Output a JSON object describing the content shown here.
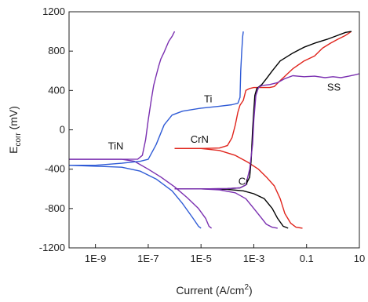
{
  "chart_data": {
    "type": "line",
    "xlabel": "Current (A/cm",
    "xlabel_sup": "2",
    "xlabel_end": ")",
    "ylabel": "E",
    "ylabel_sub": "corr",
    "ylabel_end": " (mV)",
    "xscale": "log",
    "xlim": [
      1e-10,
      10
    ],
    "ylim": [
      -1200,
      1200
    ],
    "x_ticks": [
      {
        "value": 1e-09,
        "label": "1E-9"
      },
      {
        "value": 1e-07,
        "label": "1E-7"
      },
      {
        "value": 1e-05,
        "label": "1E-5"
      },
      {
        "value": 0.001,
        "label": "1E-3"
      },
      {
        "value": 0.1,
        "label": "0.1"
      },
      {
        "value": 10,
        "label": "10"
      }
    ],
    "y_ticks": [
      {
        "value": 1200,
        "label": "1200"
      },
      {
        "value": 800,
        "label": "800"
      },
      {
        "value": 400,
        "label": "400"
      },
      {
        "value": 0,
        "label": "0"
      },
      {
        "value": -400,
        "label": "-400"
      },
      {
        "value": -800,
        "label": "-800"
      },
      {
        "value": -1200,
        "label": "-1200"
      }
    ],
    "grid": false,
    "series": [
      {
        "name": "TiN",
        "color": "#7a2fb0",
        "label_pos": {
          "x": 3e-09,
          "y": -200
        },
        "points": [
          [
            1e-10,
            -300
          ],
          [
            1e-09,
            -300
          ],
          [
            1e-08,
            -300
          ],
          [
            4e-08,
            -298
          ],
          [
            6e-08,
            -260
          ],
          [
            8e-08,
            -100
          ],
          [
            1e-07,
            100
          ],
          [
            1.3e-07,
            300
          ],
          [
            1.6e-07,
            450
          ],
          [
            2e-07,
            550
          ],
          [
            2.5e-07,
            650
          ],
          [
            3e-07,
            720
          ],
          [
            4e-07,
            790
          ],
          [
            5e-07,
            850
          ],
          [
            6e-07,
            900
          ],
          [
            8e-07,
            950
          ],
          [
            1e-06,
            1000
          ]
        ]
      },
      {
        "name": "",
        "color": "#7a2fb0",
        "points": [
          [
            1e-10,
            -300
          ],
          [
            1e-09,
            -300
          ],
          [
            1e-08,
            -300
          ],
          [
            3e-08,
            -320
          ],
          [
            1e-07,
            -400
          ],
          [
            3e-07,
            -480
          ],
          [
            1e-06,
            -580
          ],
          [
            3e-06,
            -690
          ],
          [
            8e-06,
            -800
          ],
          [
            1.5e-05,
            -900
          ],
          [
            2e-05,
            -980
          ],
          [
            2.5e-05,
            -1000
          ]
        ]
      },
      {
        "name": "Ti",
        "color": "#2f5bd6",
        "label_pos": {
          "x": 1.3e-05,
          "y": 280
        },
        "points": [
          [
            1e-10,
            -360
          ],
          [
            1e-09,
            -360
          ],
          [
            1e-08,
            -340
          ],
          [
            5e-08,
            -320
          ],
          [
            1e-07,
            -300
          ],
          [
            2e-07,
            -150
          ],
          [
            4e-07,
            50
          ],
          [
            8e-07,
            150
          ],
          [
            2e-06,
            190
          ],
          [
            1e-05,
            220
          ],
          [
            5e-05,
            240
          ],
          [
            0.00015,
            255
          ],
          [
            0.00025,
            270
          ],
          [
            0.0003,
            330
          ],
          [
            0.00032,
            600
          ],
          [
            0.00035,
            800
          ],
          [
            0.00038,
            950
          ],
          [
            0.0004,
            1000
          ]
        ]
      },
      {
        "name": "",
        "color": "#2f5bd6",
        "points": [
          [
            1e-10,
            -360
          ],
          [
            1e-09,
            -370
          ],
          [
            1e-08,
            -380
          ],
          [
            5e-08,
            -420
          ],
          [
            2e-07,
            -500
          ],
          [
            8e-07,
            -620
          ],
          [
            2e-06,
            -750
          ],
          [
            5e-06,
            -900
          ],
          [
            8e-06,
            -980
          ],
          [
            1e-05,
            -1000
          ]
        ]
      },
      {
        "name": "CrN",
        "color": "#e0241c",
        "label_pos": {
          "x": 4e-06,
          "y": -130
        },
        "points": [
          [
            1e-06,
            -190
          ],
          [
            1e-05,
            -190
          ],
          [
            5e-05,
            -185
          ],
          [
            0.0001,
            -160
          ],
          [
            0.00015,
            -80
          ],
          [
            0.0002,
            50
          ],
          [
            0.00025,
            180
          ],
          [
            0.0003,
            250
          ],
          [
            0.0004,
            300
          ],
          [
            0.0005,
            400
          ],
          [
            0.0007,
            420
          ],
          [
            0.001,
            430
          ],
          [
            0.002,
            430
          ],
          [
            0.004,
            430
          ],
          [
            0.006,
            440
          ],
          [
            0.01,
            500
          ],
          [
            0.03,
            620
          ],
          [
            0.08,
            700
          ],
          [
            0.2,
            750
          ],
          [
            0.4,
            830
          ],
          [
            0.8,
            880
          ],
          [
            1.5,
            920
          ],
          [
            3,
            960
          ],
          [
            5,
            1000
          ]
        ]
      },
      {
        "name": "",
        "color": "#e0241c",
        "points": [
          [
            1e-06,
            -190
          ],
          [
            1e-05,
            -190
          ],
          [
            5e-05,
            -210
          ],
          [
            0.0002,
            -260
          ],
          [
            0.0006,
            -330
          ],
          [
            0.0015,
            -400
          ],
          [
            0.003,
            -480
          ],
          [
            0.006,
            -570
          ],
          [
            0.01,
            -700
          ],
          [
            0.015,
            -850
          ],
          [
            0.025,
            -950
          ],
          [
            0.04,
            -990
          ],
          [
            0.07,
            -1000
          ]
        ]
      },
      {
        "name": "Cr",
        "color": "#000000",
        "label_pos": {
          "x": 0.00026,
          "y": -560
        },
        "points": [
          [
            1e-06,
            -600
          ],
          [
            1e-05,
            -600
          ],
          [
            0.0001,
            -598
          ],
          [
            0.0003,
            -590
          ],
          [
            0.0005,
            -560
          ],
          [
            0.0007,
            -480
          ],
          [
            0.0008,
            -300
          ],
          [
            0.0009,
            0
          ],
          [
            0.001,
            200
          ],
          [
            0.0011,
            350
          ],
          [
            0.0013,
            420
          ],
          [
            0.002,
            460
          ],
          [
            0.003,
            520
          ],
          [
            0.005,
            600
          ],
          [
            0.01,
            700
          ],
          [
            0.03,
            780
          ],
          [
            0.08,
            840
          ],
          [
            0.2,
            880
          ],
          [
            0.6,
            920
          ],
          [
            1.5,
            960
          ],
          [
            3,
            990
          ],
          [
            5,
            1000
          ]
        ]
      },
      {
        "name": "",
        "color": "#000000",
        "points": [
          [
            1e-06,
            -600
          ],
          [
            1e-05,
            -600
          ],
          [
            0.0001,
            -605
          ],
          [
            0.0004,
            -620
          ],
          [
            0.001,
            -650
          ],
          [
            0.0025,
            -700
          ],
          [
            0.005,
            -800
          ],
          [
            0.008,
            -900
          ],
          [
            0.013,
            -980
          ],
          [
            0.02,
            -1000
          ]
        ]
      },
      {
        "name": "SS",
        "color": "#7a2fb0",
        "label_pos": {
          "x": 0.6,
          "y": 400
        },
        "points": [
          [
            1e-06,
            -600
          ],
          [
            1e-05,
            -600
          ],
          [
            0.0001,
            -598
          ],
          [
            0.0003,
            -590
          ],
          [
            0.0005,
            -560
          ],
          [
            0.0007,
            -400
          ],
          [
            0.0009,
            -150
          ],
          [
            0.001,
            100
          ],
          [
            0.0012,
            350
          ],
          [
            0.0015,
            430
          ],
          [
            0.002,
            450
          ],
          [
            0.004,
            460
          ],
          [
            0.008,
            480
          ],
          [
            0.015,
            520
          ],
          [
            0.03,
            550
          ],
          [
            0.08,
            540
          ],
          [
            0.2,
            545
          ],
          [
            0.5,
            530
          ],
          [
            1,
            540
          ],
          [
            2,
            530
          ],
          [
            4,
            545
          ],
          [
            7,
            560
          ],
          [
            10,
            570
          ]
        ]
      },
      {
        "name": "",
        "color": "#7a2fb0",
        "points": [
          [
            1e-06,
            -600
          ],
          [
            1e-05,
            -600
          ],
          [
            5e-05,
            -610
          ],
          [
            0.0002,
            -640
          ],
          [
            0.0005,
            -700
          ],
          [
            0.001,
            -800
          ],
          [
            0.002,
            -900
          ],
          [
            0.003,
            -960
          ],
          [
            0.005,
            -990
          ],
          [
            0.008,
            -1000
          ]
        ]
      }
    ]
  }
}
